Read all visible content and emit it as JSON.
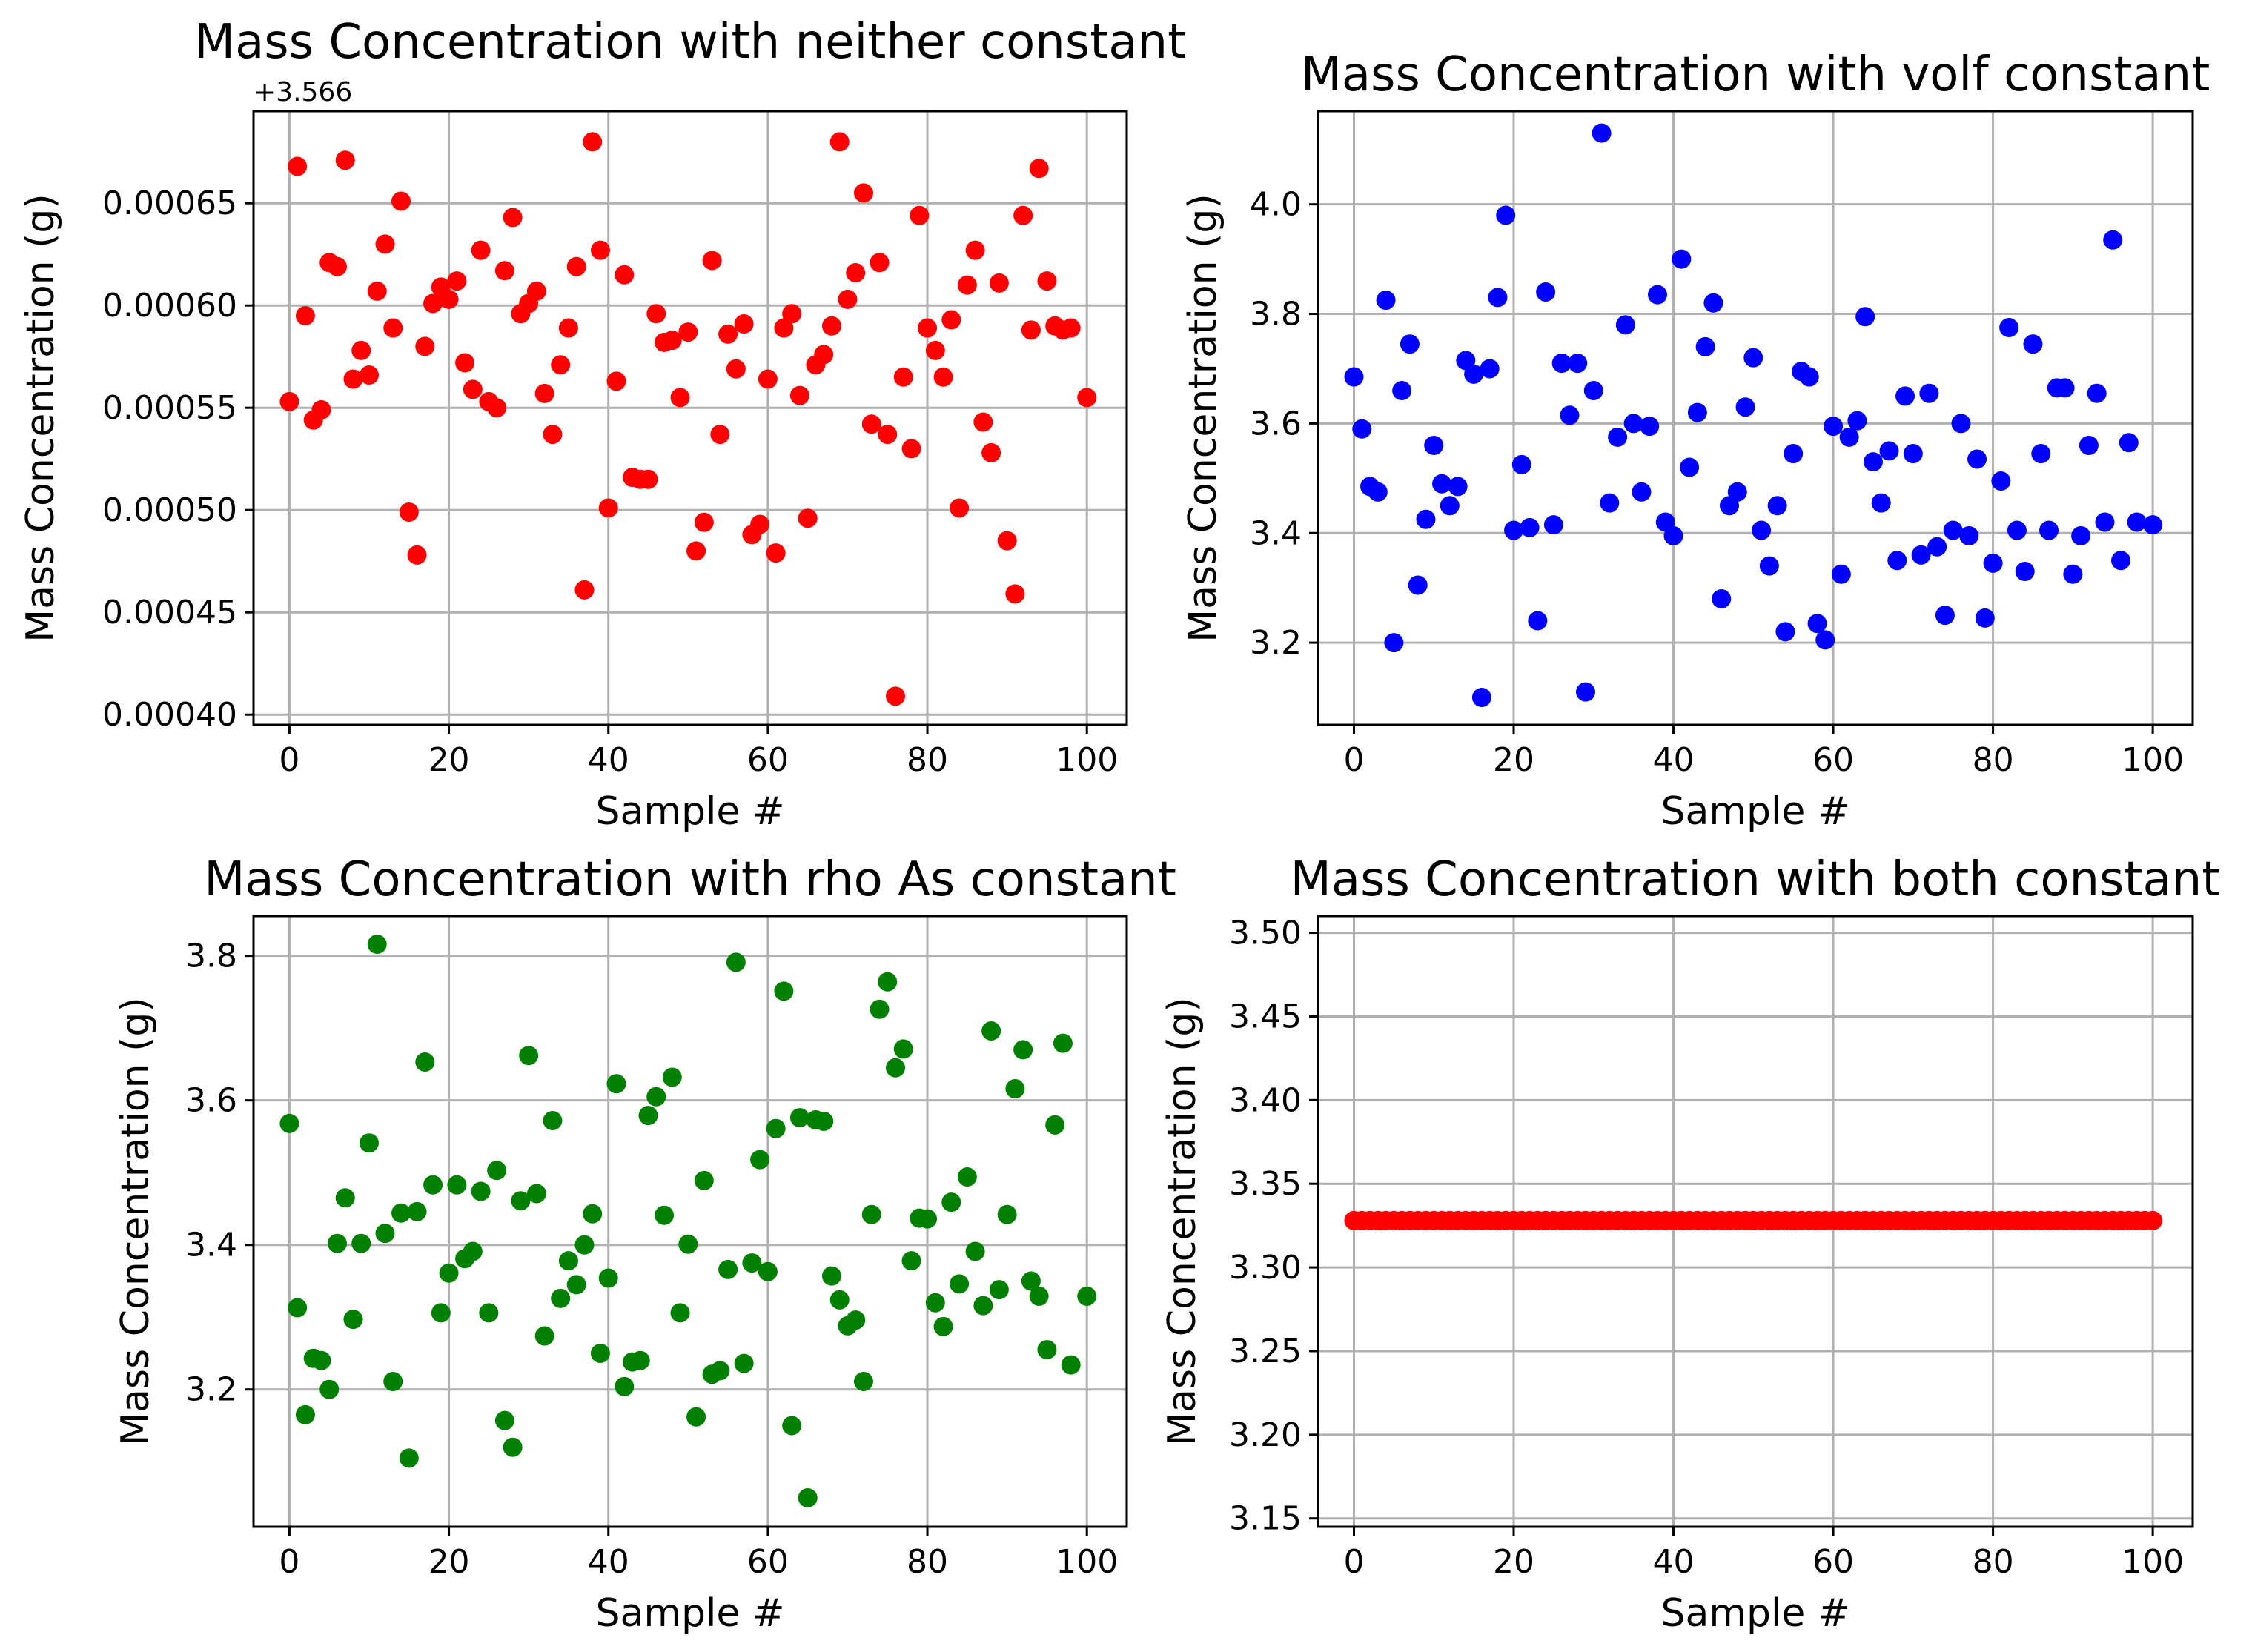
{
  "chart_data": [
    {
      "type": "scatter",
      "title": "Mass Concentration with neither constant",
      "xlabel": "Sample #",
      "ylabel": "Mass Concentration (g)",
      "offset_label": "+3.566",
      "xlim": [
        -4.5,
        105
      ],
      "ylim": [
        0.000395,
        0.000695
      ],
      "xticks": [
        0,
        20,
        40,
        60,
        80,
        100
      ],
      "xtick_labels": [
        "0",
        "20",
        "40",
        "60",
        "80",
        "100"
      ],
      "yticks": [
        0.0004,
        0.00045,
        0.0005,
        0.00055,
        0.0006,
        0.00065
      ],
      "ytick_labels": [
        "0.00040",
        "0.00045",
        "0.00050",
        "0.00055",
        "0.00060",
        "0.00065"
      ],
      "grid": true,
      "color": "#ff0000",
      "series": [
        {
          "x": [
            0,
            1,
            2,
            3,
            4,
            5,
            6,
            7,
            8,
            9,
            10,
            11,
            12,
            13,
            14,
            15,
            16,
            17,
            18,
            19,
            20,
            21,
            22,
            23,
            24,
            25,
            26,
            27,
            28,
            29,
            30,
            31,
            32,
            33,
            34,
            35,
            36,
            37,
            38,
            39,
            40,
            41,
            42,
            43,
            44,
            45,
            46,
            47,
            48,
            49,
            50,
            51,
            52,
            53,
            54,
            55,
            56,
            57,
            58,
            59,
            60,
            61,
            62,
            63,
            64,
            65,
            66,
            67,
            68,
            69,
            70,
            71,
            72,
            73,
            74,
            75,
            76,
            77,
            78,
            79,
            80,
            81,
            82,
            83,
            84,
            85,
            86,
            87,
            88,
            89,
            90,
            91,
            92,
            93,
            94,
            95,
            96,
            97,
            98,
            100
          ],
          "y": [
            0.000553,
            0.000668,
            0.000595,
            0.000544,
            0.000549,
            0.000621,
            0.000619,
            0.000671,
            0.000564,
            0.000578,
            0.000566,
            0.000607,
            0.00063,
            0.000589,
            0.000651,
            0.000499,
            0.000478,
            0.00058,
            0.000601,
            0.000609,
            0.000603,
            0.000612,
            0.000572,
            0.000559,
            0.000627,
            0.000553,
            0.00055,
            0.000617,
            0.000643,
            0.000596,
            0.000601,
            0.000607,
            0.000557,
            0.000537,
            0.000571,
            0.000589,
            0.000619,
            0.000461,
            0.00068,
            0.000627,
            0.000501,
            0.000563,
            0.000615,
            0.000516,
            0.000515,
            0.000515,
            0.000596,
            0.000582,
            0.000583,
            0.000555,
            0.000587,
            0.00048,
            0.000494,
            0.000622,
            0.000537,
            0.000586,
            0.000569,
            0.000591,
            0.000488,
            0.000493,
            0.000564,
            0.000479,
            0.000589,
            0.000596,
            0.000556,
            0.000496,
            0.000571,
            0.000576,
            0.00059,
            0.00068,
            0.000603,
            0.000616,
            0.000655,
            0.000542,
            0.000621,
            0.000537,
            0.000409,
            0.000565,
            0.00053,
            0.000644,
            0.000589,
            0.000578,
            0.000565,
            0.000593,
            0.000501,
            0.00061,
            0.000627,
            0.000543,
            0.000528,
            0.000611,
            0.000485,
            0.000459,
            0.000644,
            0.000588,
            0.000667,
            0.000612,
            0.00059,
            0.000588,
            0.000589,
            0.000555
          ]
        }
      ]
    },
    {
      "type": "scatter",
      "title": "Mass Concentration with volf constant",
      "xlabel": "Sample #",
      "ylabel": "Mass Concentration (g)",
      "xlim": [
        -4.5,
        105
      ],
      "ylim": [
        3.05,
        4.17
      ],
      "xticks": [
        0,
        20,
        40,
        60,
        80,
        100
      ],
      "xtick_labels": [
        "0",
        "20",
        "40",
        "60",
        "80",
        "100"
      ],
      "yticks": [
        3.2,
        3.4,
        3.6,
        3.8,
        4.0
      ],
      "ytick_labels": [
        "3.2",
        "3.4",
        "3.6",
        "3.8",
        "4.0"
      ],
      "grid": true,
      "color": "#0000ff",
      "series": [
        {
          "x": [
            0,
            1,
            2,
            3,
            4,
            5,
            6,
            7,
            8,
            9,
            10,
            11,
            12,
            13,
            14,
            15,
            16,
            17,
            18,
            19,
            20,
            21,
            22,
            23,
            24,
            25,
            26,
            27,
            28,
            29,
            30,
            31,
            32,
            33,
            34,
            35,
            36,
            37,
            38,
            39,
            40,
            41,
            42,
            43,
            44,
            45,
            46,
            47,
            48,
            49,
            50,
            51,
            52,
            53,
            54,
            55,
            56,
            57,
            58,
            59,
            60,
            61,
            62,
            63,
            64,
            65,
            66,
            67,
            68,
            69,
            70,
            71,
            72,
            73,
            74,
            75,
            76,
            77,
            78,
            79,
            80,
            81,
            82,
            83,
            84,
            85,
            86,
            87,
            88,
            89,
            90,
            91,
            92,
            93,
            94,
            95,
            96,
            97,
            98,
            100
          ],
          "y": [
            3.685,
            3.59,
            3.485,
            3.475,
            3.825,
            3.2,
            3.66,
            3.745,
            3.305,
            3.425,
            3.56,
            3.49,
            3.45,
            3.485,
            3.715,
            3.69,
            3.1,
            3.7,
            3.83,
            3.98,
            3.405,
            3.525,
            3.41,
            3.24,
            3.84,
            3.415,
            3.71,
            3.615,
            3.71,
            3.11,
            3.66,
            4.13,
            3.455,
            3.575,
            3.78,
            3.6,
            3.475,
            3.595,
            3.835,
            3.42,
            3.395,
            3.9,
            3.52,
            3.62,
            3.74,
            3.82,
            3.28,
            3.45,
            3.475,
            3.63,
            3.72,
            3.405,
            3.34,
            3.45,
            3.22,
            3.545,
            3.695,
            3.685,
            3.235,
            3.205,
            3.595,
            3.325,
            3.575,
            3.605,
            3.795,
            3.53,
            3.455,
            3.55,
            3.35,
            3.65,
            3.545,
            3.36,
            3.655,
            3.375,
            3.25,
            3.405,
            3.6,
            3.395,
            3.535,
            3.245,
            3.345,
            3.495,
            3.775,
            3.405,
            3.33,
            3.745,
            3.545,
            3.405,
            3.665,
            3.665,
            3.325,
            3.395,
            3.56,
            3.655,
            3.42,
            3.935,
            3.35,
            3.565,
            3.42,
            3.415
          ]
        }
      ]
    },
    {
      "type": "scatter",
      "title": "Mass Concentration with rho As constant",
      "xlabel": "Sample #",
      "ylabel": "Mass Concentration (g)",
      "xlim": [
        -4.5,
        105
      ],
      "ylim": [
        3.01,
        3.855
      ],
      "xticks": [
        0,
        20,
        40,
        60,
        80,
        100
      ],
      "xtick_labels": [
        "0",
        "20",
        "40",
        "60",
        "80",
        "100"
      ],
      "yticks": [
        3.2,
        3.4,
        3.6,
        3.8
      ],
      "ytick_labels": [
        "3.2",
        "3.4",
        "3.6",
        "3.8"
      ],
      "grid": true,
      "color": "#008000",
      "series": [
        {
          "x": [
            0,
            1,
            2,
            3,
            4,
            5,
            6,
            7,
            8,
            9,
            10,
            11,
            12,
            13,
            14,
            15,
            16,
            17,
            18,
            19,
            20,
            21,
            22,
            23,
            24,
            25,
            26,
            27,
            28,
            29,
            30,
            31,
            32,
            33,
            34,
            35,
            36,
            37,
            38,
            39,
            40,
            41,
            42,
            43,
            44,
            45,
            46,
            47,
            48,
            49,
            50,
            51,
            52,
            53,
            54,
            55,
            56,
            57,
            58,
            59,
            60,
            61,
            62,
            63,
            64,
            65,
            66,
            67,
            68,
            69,
            70,
            71,
            72,
            73,
            74,
            75,
            76,
            77,
            78,
            79,
            80,
            81,
            82,
            83,
            84,
            85,
            86,
            87,
            88,
            89,
            90,
            91,
            92,
            93,
            94,
            95,
            96,
            97,
            98,
            100
          ],
          "y": [
            3.568,
            3.313,
            3.165,
            3.243,
            3.24,
            3.2,
            3.402,
            3.465,
            3.297,
            3.402,
            3.541,
            3.816,
            3.416,
            3.211,
            3.444,
            3.105,
            3.446,
            3.653,
            3.483,
            3.306,
            3.361,
            3.483,
            3.381,
            3.391,
            3.474,
            3.306,
            3.503,
            3.157,
            3.12,
            3.461,
            3.662,
            3.471,
            3.274,
            3.572,
            3.326,
            3.378,
            3.345,
            3.4,
            3.443,
            3.25,
            3.354,
            3.623,
            3.204,
            3.238,
            3.24,
            3.579,
            3.605,
            3.441,
            3.632,
            3.306,
            3.401,
            3.162,
            3.489,
            3.221,
            3.226,
            3.366,
            3.791,
            3.236,
            3.375,
            3.518,
            3.363,
            3.561,
            3.751,
            3.15,
            3.576,
            3.05,
            3.573,
            3.571,
            3.357,
            3.324,
            3.288,
            3.296,
            3.211,
            3.442,
            3.726,
            3.764,
            3.645,
            3.671,
            3.378,
            3.437,
            3.436,
            3.32,
            3.287,
            3.459,
            3.346,
            3.494,
            3.391,
            3.316,
            3.696,
            3.338,
            3.442,
            3.616,
            3.67,
            3.35,
            3.329,
            3.255,
            3.566,
            3.679,
            3.234,
            3.329
          ]
        }
      ]
    },
    {
      "type": "scatter",
      "title": "Mass Concentration with both constant",
      "xlabel": "Sample #",
      "ylabel": "Mass Concentration (g)",
      "xlim": [
        -4.5,
        105
      ],
      "ylim": [
        3.145,
        3.51
      ],
      "xticks": [
        0,
        20,
        40,
        60,
        80,
        100
      ],
      "xtick_labels": [
        "0",
        "20",
        "40",
        "60",
        "80",
        "100"
      ],
      "yticks": [
        3.15,
        3.2,
        3.25,
        3.3,
        3.35,
        3.4,
        3.45,
        3.5
      ],
      "ytick_labels": [
        "3.15",
        "3.20",
        "3.25",
        "3.30",
        "3.35",
        "3.40",
        "3.45",
        "3.50"
      ],
      "grid": true,
      "color": "#ff0000",
      "series": [
        {
          "x": [
            0,
            1,
            2,
            3,
            4,
            5,
            6,
            7,
            8,
            9,
            10,
            11,
            12,
            13,
            14,
            15,
            16,
            17,
            18,
            19,
            20,
            21,
            22,
            23,
            24,
            25,
            26,
            27,
            28,
            29,
            30,
            31,
            32,
            33,
            34,
            35,
            36,
            37,
            38,
            39,
            40,
            41,
            42,
            43,
            44,
            45,
            46,
            47,
            48,
            49,
            50,
            51,
            52,
            53,
            54,
            55,
            56,
            57,
            58,
            59,
            60,
            61,
            62,
            63,
            64,
            65,
            66,
            67,
            68,
            69,
            70,
            71,
            72,
            73,
            74,
            75,
            76,
            77,
            78,
            79,
            80,
            81,
            82,
            83,
            84,
            85,
            86,
            87,
            88,
            89,
            90,
            91,
            92,
            93,
            94,
            95,
            96,
            97,
            98,
            99,
            100
          ],
          "y": [
            3.328,
            3.328,
            3.328,
            3.328,
            3.328,
            3.328,
            3.328,
            3.328,
            3.328,
            3.328,
            3.328,
            3.328,
            3.328,
            3.328,
            3.328,
            3.328,
            3.328,
            3.328,
            3.328,
            3.328,
            3.328,
            3.328,
            3.328,
            3.328,
            3.328,
            3.328,
            3.328,
            3.328,
            3.328,
            3.328,
            3.328,
            3.328,
            3.328,
            3.328,
            3.328,
            3.328,
            3.328,
            3.328,
            3.328,
            3.328,
            3.328,
            3.328,
            3.328,
            3.328,
            3.328,
            3.328,
            3.328,
            3.328,
            3.328,
            3.328,
            3.328,
            3.328,
            3.328,
            3.328,
            3.328,
            3.328,
            3.328,
            3.328,
            3.328,
            3.328,
            3.328,
            3.328,
            3.328,
            3.328,
            3.328,
            3.328,
            3.328,
            3.328,
            3.328,
            3.328,
            3.328,
            3.328,
            3.328,
            3.328,
            3.328,
            3.328,
            3.328,
            3.328,
            3.328,
            3.328,
            3.328,
            3.328,
            3.328,
            3.328,
            3.328,
            3.328,
            3.328,
            3.328,
            3.328,
            3.328,
            3.328,
            3.328,
            3.328,
            3.328,
            3.328,
            3.328,
            3.328,
            3.328,
            3.328,
            3.328,
            3.328
          ]
        }
      ]
    }
  ]
}
